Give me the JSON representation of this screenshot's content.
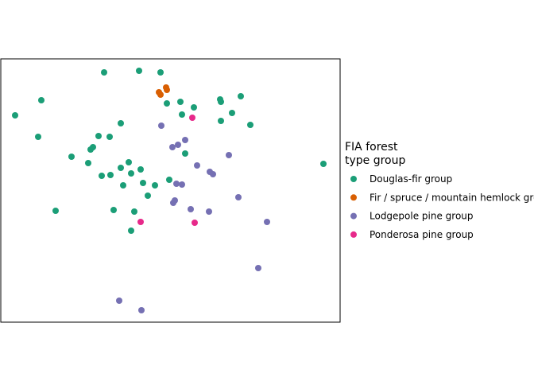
{
  "chart_data": {
    "type": "scatter",
    "legend_title": [
      "FIA forest",
      "type group"
    ],
    "legend_position": "right",
    "xlim": [
      0,
      427
    ],
    "ylim": [
      0,
      331
    ],
    "series": [
      {
        "name": "Douglas-fir group",
        "color": "#1b9e77",
        "x": [
          130,
          174,
          201,
          51,
          18,
          209,
          226,
          243,
          276,
          277,
          302,
          291,
          228,
          314,
          277,
          151,
          123,
          137,
          47,
          116,
          113,
          89,
          110,
          232,
          161,
          151,
          138,
          127,
          164,
          176,
          212,
          154,
          179,
          194,
          185,
          406,
          69,
          142,
          168,
          164
        ],
        "y": [
          314,
          316,
          314,
          279,
          260,
          275,
          277,
          270,
          280,
          277,
          284,
          263,
          261,
          248,
          253,
          250,
          234,
          233,
          233,
          220,
          217,
          208,
          200,
          212,
          201,
          194,
          185,
          184,
          187,
          192,
          179,
          172,
          175,
          172,
          159,
          199,
          140,
          141,
          139,
          115
        ]
      },
      {
        "name": "Fir / spruce / mountain hemlock group",
        "color": "#d95f02",
        "x": [
          199,
          201,
          208,
          209
        ],
        "y": [
          289,
          286,
          295,
          292
        ]
      },
      {
        "name": "Lodgepole pine group",
        "color": "#7570b3",
        "x": [
          202,
          232,
          223,
          216,
          287,
          247,
          263,
          267,
          221,
          228,
          219,
          217,
          299,
          239,
          262,
          335,
          324,
          149,
          177
        ],
        "y": [
          247,
          229,
          223,
          220,
          210,
          197,
          189,
          186,
          174,
          173,
          153,
          150,
          157,
          142,
          139,
          126,
          68,
          27,
          15
        ]
      },
      {
        "name": "Ponderosa pine group",
        "color": "#e7298a",
        "x": [
          241,
          176,
          244
        ],
        "y": [
          257,
          126,
          125
        ]
      }
    ]
  }
}
